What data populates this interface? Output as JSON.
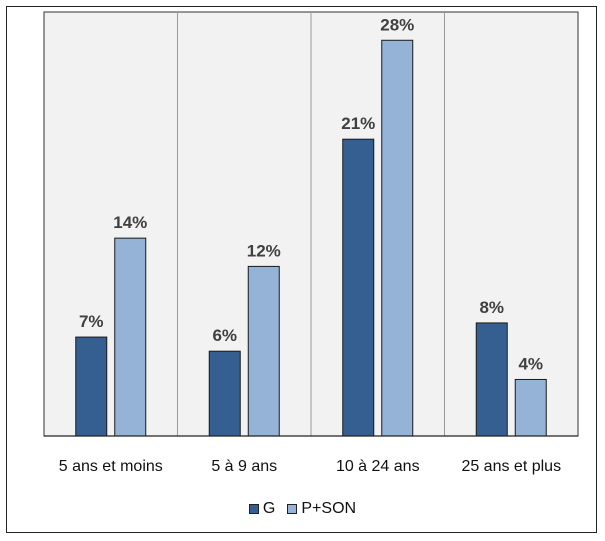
{
  "chart_data": {
    "type": "bar",
    "title": "",
    "xlabel": "",
    "ylabel": "",
    "categories": [
      "5 ans et moins",
      "5 à 9 ans",
      "10 à 24 ans",
      "25 ans et plus"
    ],
    "series": [
      {
        "name": "G",
        "values": [
          7,
          6,
          21,
          8
        ],
        "labels": [
          "7%",
          "6%",
          "21%",
          "8%"
        ],
        "color": "#365f91"
      },
      {
        "name": "P+SON",
        "values": [
          14,
          12,
          28,
          4
        ],
        "labels": [
          "14%",
          "12%",
          "28%",
          "4%"
        ],
        "color": "#95b3d7"
      }
    ],
    "ylim": [
      0,
      30
    ],
    "grid": false,
    "legend": "bottom",
    "plot_background": "#f2f2f2"
  }
}
